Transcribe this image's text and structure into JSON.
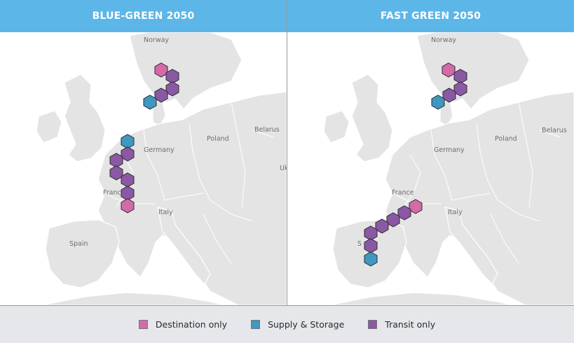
{
  "colors": {
    "destination": "#d56aa8",
    "supply": "#3f98c0",
    "transit": "#8a58a4",
    "header": "#5db6e8"
  },
  "panels": [
    {
      "title": "BLUE-GREEN 2050",
      "labels": [
        "Norway",
        "Belarus",
        "Poland",
        "Germany",
        "France",
        "Italy",
        "Spain",
        "Uk"
      ],
      "hexes": [
        {
          "type": "destination"
        },
        {
          "type": "transit"
        },
        {
          "type": "transit"
        },
        {
          "type": "transit"
        },
        {
          "type": "supply"
        },
        {
          "type": "supply"
        },
        {
          "type": "transit"
        },
        {
          "type": "transit"
        },
        {
          "type": "transit"
        },
        {
          "type": "transit"
        },
        {
          "type": "transit"
        },
        {
          "type": "destination"
        }
      ]
    },
    {
      "title": "FAST GREEN 2050",
      "labels": [
        "Norway",
        "Belarus",
        "Poland",
        "Germany",
        "France",
        "Italy",
        "S"
      ],
      "hexes": [
        {
          "type": "destination"
        },
        {
          "type": "transit"
        },
        {
          "type": "transit"
        },
        {
          "type": "transit"
        },
        {
          "type": "supply"
        },
        {
          "type": "destination"
        },
        {
          "type": "transit"
        },
        {
          "type": "transit"
        },
        {
          "type": "transit"
        },
        {
          "type": "transit"
        },
        {
          "type": "transit"
        },
        {
          "type": "supply"
        }
      ]
    }
  ],
  "legend": [
    {
      "label": "Destination only",
      "type": "destination"
    },
    {
      "label": "Supply & Storage",
      "type": "supply"
    },
    {
      "label": "Transit only",
      "type": "transit"
    }
  ]
}
